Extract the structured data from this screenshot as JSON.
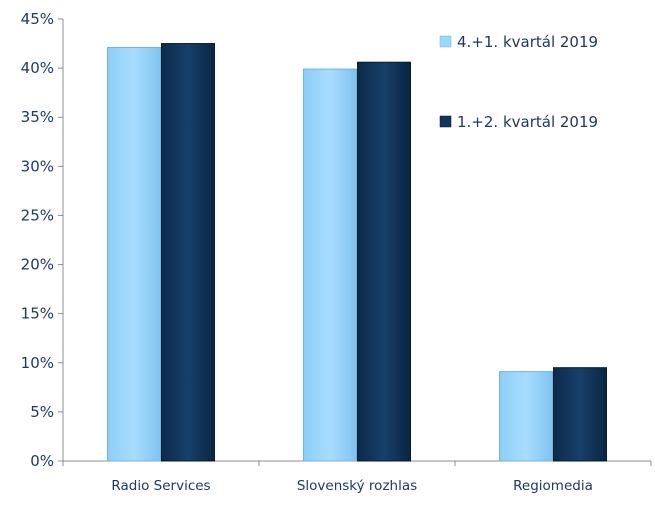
{
  "chart_data": {
    "type": "bar",
    "categories": [
      "Radio Services",
      "Slovenský rozhlas",
      "Regiomedia"
    ],
    "series": [
      {
        "name": "4.+1. kvartál 2019",
        "values": [
          42.1,
          39.9,
          9.1
        ],
        "color": "#99d6ff"
      },
      {
        "name": "1.+2. kvartál 2019",
        "values": [
          42.5,
          40.6,
          9.5
        ],
        "color": "#12355b"
      }
    ],
    "ylim": [
      0,
      45
    ],
    "yticks": [
      "0%",
      "5%",
      "10%",
      "15%",
      "20%",
      "25%",
      "30%",
      "35%",
      "40%",
      "45%"
    ],
    "grid": false,
    "legend_position": "top-right"
  }
}
